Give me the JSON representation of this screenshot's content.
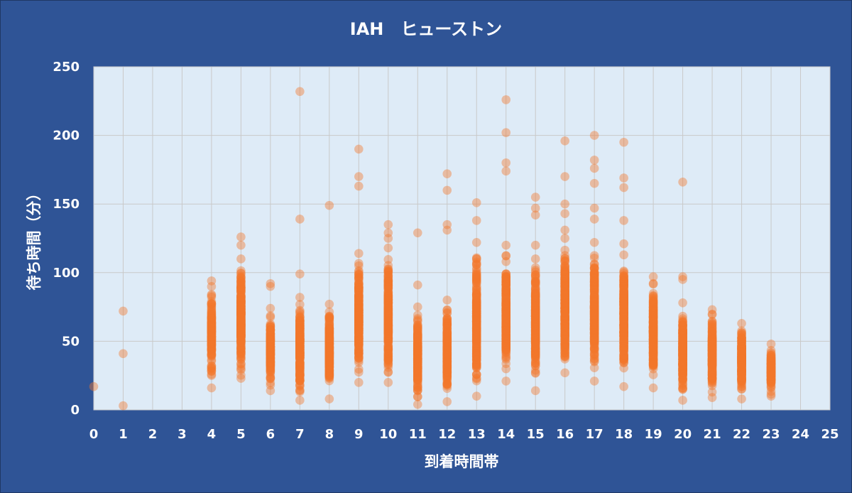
{
  "chart_data": {
    "type": "scatter",
    "title": "IAH　ヒューストン",
    "xlabel": "到着時間帯",
    "ylabel": "待ち時間（分）",
    "xlim": [
      0,
      25
    ],
    "ylim": [
      0,
      250
    ],
    "x_ticks": [
      "0",
      "1",
      "2",
      "3",
      "4",
      "5",
      "6",
      "7",
      "8",
      "9",
      "10",
      "11",
      "12",
      "13",
      "14",
      "15",
      "16",
      "17",
      "18",
      "19",
      "20",
      "21",
      "22",
      "23",
      "24",
      "25"
    ],
    "y_ticks": [
      "0",
      "50",
      "100",
      "150",
      "200",
      "250"
    ],
    "grid": true,
    "legend": "none",
    "colors": {
      "point": "#f4782a",
      "plot_bg": "#deebf7",
      "frame": "#2f5496",
      "grid": "#c9c9c9"
    },
    "hours": [
      {
        "x": 0,
        "range": [
          17,
          17
        ],
        "n": 1,
        "outliers": []
      },
      {
        "x": 1,
        "range": [
          3,
          3
        ],
        "n": 1,
        "outliers": [
          41,
          72
        ]
      },
      {
        "x": 4,
        "range": [
          16,
          94
        ],
        "n": 150,
        "outliers": []
      },
      {
        "x": 5,
        "range": [
          23,
          110
        ],
        "n": 260,
        "outliers": [
          120,
          126
        ]
      },
      {
        "x": 6,
        "range": [
          14,
          74
        ],
        "n": 150,
        "outliers": [
          90,
          92
        ]
      },
      {
        "x": 7,
        "range": [
          7,
          82
        ],
        "n": 220,
        "outliers": [
          99,
          139,
          232
        ]
      },
      {
        "x": 8,
        "range": [
          8,
          77
        ],
        "n": 220,
        "outliers": [
          149
        ]
      },
      {
        "x": 9,
        "range": [
          20,
          114
        ],
        "n": 260,
        "outliers": [
          163,
          170,
          190
        ]
      },
      {
        "x": 10,
        "range": [
          20,
          118
        ],
        "n": 260,
        "outliers": [
          125,
          129,
          135
        ]
      },
      {
        "x": 11,
        "range": [
          4,
          75
        ],
        "n": 220,
        "outliers": [
          91,
          129
        ]
      },
      {
        "x": 12,
        "range": [
          6,
          80
        ],
        "n": 220,
        "outliers": [
          131,
          135,
          160,
          172
        ]
      },
      {
        "x": 13,
        "range": [
          10,
          122
        ],
        "n": 260,
        "outliers": [
          138,
          151
        ]
      },
      {
        "x": 14,
        "range": [
          21,
          120
        ],
        "n": 260,
        "outliers": [
          174,
          180,
          202,
          226
        ]
      },
      {
        "x": 15,
        "range": [
          14,
          110
        ],
        "n": 260,
        "outliers": [
          120,
          142,
          147,
          155
        ]
      },
      {
        "x": 16,
        "range": [
          27,
          125
        ],
        "n": 260,
        "outliers": [
          131,
          143,
          150,
          170,
          196
        ]
      },
      {
        "x": 17,
        "range": [
          21,
          122
        ],
        "n": 260,
        "outliers": [
          139,
          147,
          165,
          176,
          182,
          200
        ]
      },
      {
        "x": 18,
        "range": [
          17,
          121
        ],
        "n": 260,
        "outliers": [
          138,
          162,
          169,
          195
        ]
      },
      {
        "x": 19,
        "range": [
          16,
          97
        ],
        "n": 220,
        "outliers": []
      },
      {
        "x": 20,
        "range": [
          7,
          78
        ],
        "n": 240,
        "outliers": [
          95,
          97,
          166
        ]
      },
      {
        "x": 21,
        "range": [
          9,
          73
        ],
        "n": 200,
        "outliers": []
      },
      {
        "x": 22,
        "range": [
          8,
          63
        ],
        "n": 200,
        "outliers": []
      },
      {
        "x": 23,
        "range": [
          10,
          48
        ],
        "n": 120,
        "outliers": []
      }
    ]
  }
}
